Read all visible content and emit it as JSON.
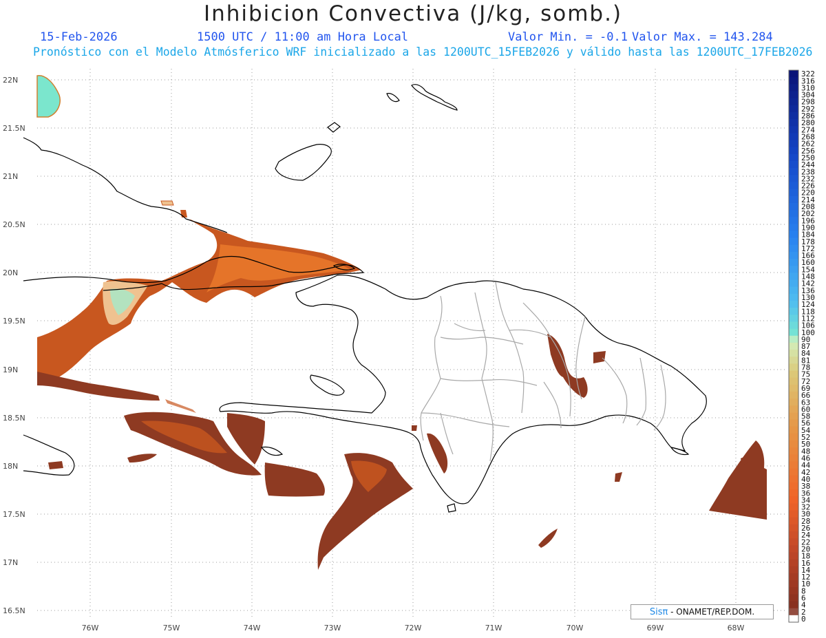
{
  "header": {
    "title": "Inhibicion Convectiva (J/kg, somb.)",
    "date": "15-Feb-2026",
    "time": "1500 UTC / 11:00 am Hora Local",
    "min_label": "Valor Min. = -0.1",
    "max_label": "Valor Max. = 143.284",
    "model_note": "Pronóstico con el Modelo Atmósferico WRF inicializado a las 1200UTC_15FEB2026 y válido hasta las  1200UTC_17FEB2026"
  },
  "axes": {
    "lat_labels": [
      "22N",
      "21.5N",
      "21N",
      "20.5N",
      "20N",
      "19.5N",
      "19N",
      "18.5N",
      "18N",
      "17.5N",
      "17N",
      "16.5N"
    ],
    "lon_labels": [
      "76W",
      "75W",
      "74W",
      "73W",
      "72W",
      "71W",
      "70W",
      "69W",
      "68W"
    ]
  },
  "colorbar": {
    "labels": [
      "322",
      "316",
      "310",
      "304",
      "298",
      "292",
      "286",
      "280",
      "274",
      "268",
      "262",
      "256",
      "250",
      "244",
      "238",
      "232",
      "226",
      "220",
      "214",
      "208",
      "202",
      "196",
      "190",
      "184",
      "178",
      "172",
      "166",
      "160",
      "154",
      "148",
      "142",
      "136",
      "130",
      "124",
      "118",
      "112",
      "106",
      "100",
      "90",
      "87",
      "84",
      "81",
      "78",
      "75",
      "72",
      "69",
      "66",
      "63",
      "60",
      "58",
      "56",
      "54",
      "52",
      "50",
      "48",
      "46",
      "44",
      "42",
      "40",
      "38",
      "36",
      "34",
      "32",
      "30",
      "28",
      "26",
      "24",
      "22",
      "20",
      "18",
      "16",
      "14",
      "12",
      "10",
      "8",
      "6",
      "4",
      "2",
      "0"
    ]
  },
  "credit": {
    "brand": "Sisπ",
    "text": "- ONAMET/REP.DOM."
  },
  "colors": {
    "fill_dark": "#8e3a22",
    "fill_mid": "#c8571f",
    "fill_orange": "#e8782a",
    "fill_light": "#efc290",
    "fill_cyan": "#7be6cd",
    "coast": "#000000",
    "province": "#aaaaaa",
    "grid": "#999999"
  }
}
